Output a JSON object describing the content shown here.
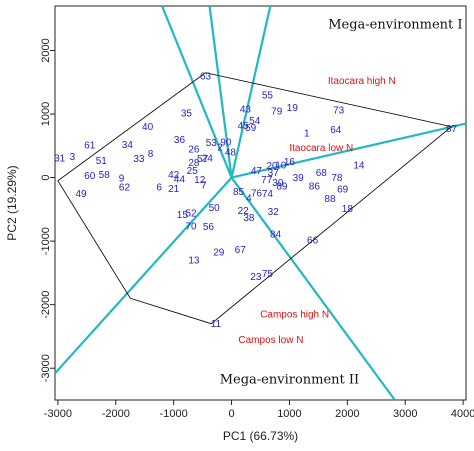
{
  "chart_data": {
    "type": "scatter",
    "title": "",
    "xlabel": "PC1 (66.73%)",
    "ylabel": "PC2 (19.29%)",
    "xlim": [
      -3050,
      4050
    ],
    "ylim": [
      -3500,
      2700
    ],
    "xticks": [
      -3000,
      -2000,
      -1000,
      0,
      1000,
      2000,
      3000,
      4000
    ],
    "yticks": [
      -3000,
      -2000,
      -1000,
      0,
      1000,
      2000
    ],
    "grid": false,
    "colors": {
      "genotype": "#1f1fc8",
      "environment": "#dd1111",
      "sector_line": "#22b8c0",
      "hull": "#111111"
    },
    "annotations": [
      {
        "text": "Mega-environment I",
        "x": 2830,
        "y": 2420
      },
      {
        "text": "Mega-environment II",
        "x": 1000,
        "y": -3170
      }
    ],
    "hull": [
      [
        -3000,
        -50
      ],
      [
        -1750,
        -1900
      ],
      [
        -350,
        -2300
      ],
      [
        3800,
        800
      ],
      [
        -450,
        1650
      ]
    ],
    "sector_lines": [
      {
        "end": [
          -3050,
          -3080
        ]
      },
      {
        "end": [
          -1200,
          2700
        ]
      },
      {
        "end": [
          -380,
          2700
        ]
      },
      {
        "end": [
          670,
          2700
        ]
      },
      {
        "end": [
          4050,
          850
        ]
      },
      {
        "end": [
          2820,
          -3500
        ]
      }
    ],
    "environments": [
      {
        "label": "Itaocara high N",
        "x": 2250,
        "y": 1530,
        "marker_x": 3800,
        "marker_y": 780
      },
      {
        "label": "Itaocara low N",
        "x": 1550,
        "y": 470,
        "marker_x": 1550,
        "marker_y": 470
      },
      {
        "label": "Campos high N",
        "x": 1090,
        "y": -2150,
        "marker_x": -280,
        "marker_y": -2300
      },
      {
        "label": "Campos low N",
        "x": 680,
        "y": -2550,
        "marker_x": -280,
        "marker_y": -2300
      }
    ],
    "genotypes": [
      {
        "label": "31",
        "x": -2970,
        "y": 310
      },
      {
        "label": "3",
        "x": -2750,
        "y": 330
      },
      {
        "label": "61",
        "x": -2450,
        "y": 510
      },
      {
        "label": "34",
        "x": -1800,
        "y": 520
      },
      {
        "label": "40",
        "x": -1450,
        "y": 800
      },
      {
        "label": "60",
        "x": -2450,
        "y": 30
      },
      {
        "label": "51",
        "x": -2250,
        "y": 270
      },
      {
        "label": "33",
        "x": -1600,
        "y": 300
      },
      {
        "label": "8",
        "x": -1400,
        "y": 380
      },
      {
        "label": "58",
        "x": -2200,
        "y": 50
      },
      {
        "label": "9",
        "x": -1900,
        "y": -10
      },
      {
        "label": "62",
        "x": -1850,
        "y": -150
      },
      {
        "label": "49",
        "x": -2600,
        "y": -250
      },
      {
        "label": "63",
        "x": -450,
        "y": 1600
      },
      {
        "label": "35",
        "x": -780,
        "y": 1020
      },
      {
        "label": "36",
        "x": -900,
        "y": 600
      },
      {
        "label": "26",
        "x": -650,
        "y": 450
      },
      {
        "label": "53",
        "x": -350,
        "y": 550
      },
      {
        "label": "90",
        "x": -100,
        "y": 560
      },
      {
        "label": "48",
        "x": -20,
        "y": 400
      },
      {
        "label": "2",
        "x": -200,
        "y": 480
      },
      {
        "label": "57",
        "x": -500,
        "y": 300
      },
      {
        "label": "24",
        "x": -420,
        "y": 310
      },
      {
        "label": "28",
        "x": -650,
        "y": 240
      },
      {
        "label": "25",
        "x": -680,
        "y": 110
      },
      {
        "label": "42",
        "x": -1000,
        "y": 50
      },
      {
        "label": "44",
        "x": -900,
        "y": -20
      },
      {
        "label": "12",
        "x": -550,
        "y": -30
      },
      {
        "label": "6",
        "x": -1250,
        "y": -150
      },
      {
        "label": "21",
        "x": -1000,
        "y": -170
      },
      {
        "label": "7",
        "x": -480,
        "y": -120
      },
      {
        "label": "43",
        "x": 240,
        "y": 1080
      },
      {
        "label": "55",
        "x": 620,
        "y": 1300
      },
      {
        "label": "79",
        "x": 780,
        "y": 1050
      },
      {
        "label": "19",
        "x": 1050,
        "y": 1100
      },
      {
        "label": "54",
        "x": 400,
        "y": 900
      },
      {
        "label": "45",
        "x": 200,
        "y": 820
      },
      {
        "label": "59",
        "x": 330,
        "y": 790
      },
      {
        "label": "1",
        "x": 1300,
        "y": 700
      },
      {
        "label": "73",
        "x": 1850,
        "y": 1060
      },
      {
        "label": "64",
        "x": 1800,
        "y": 760
      },
      {
        "label": "14",
        "x": 2200,
        "y": 200
      },
      {
        "label": "78",
        "x": 1820,
        "y": 0
      },
      {
        "label": "69",
        "x": 1920,
        "y": -180
      },
      {
        "label": "68",
        "x": 1550,
        "y": 80
      },
      {
        "label": "86",
        "x": 1430,
        "y": -130
      },
      {
        "label": "88",
        "x": 1700,
        "y": -330
      },
      {
        "label": "18",
        "x": 2000,
        "y": -490
      },
      {
        "label": "87",
        "x": 3800,
        "y": 770
      },
      {
        "label": "16",
        "x": 1000,
        "y": 250
      },
      {
        "label": "20",
        "x": 700,
        "y": 190
      },
      {
        "label": "10",
        "x": 850,
        "y": 200
      },
      {
        "label": "39",
        "x": 1150,
        "y": 0
      },
      {
        "label": "47",
        "x": 430,
        "y": 110
      },
      {
        "label": "37",
        "x": 720,
        "y": 80
      },
      {
        "label": "77",
        "x": 610,
        "y": -30
      },
      {
        "label": "30",
        "x": 800,
        "y": -80
      },
      {
        "label": "89",
        "x": 870,
        "y": -130
      },
      {
        "label": "85",
        "x": 120,
        "y": -220
      },
      {
        "label": "76",
        "x": 430,
        "y": -240
      },
      {
        "label": "4",
        "x": 300,
        "y": -320
      },
      {
        "label": "74",
        "x": 620,
        "y": -250
      },
      {
        "label": "50",
        "x": -300,
        "y": -470
      },
      {
        "label": "15",
        "x": -850,
        "y": -580
      },
      {
        "label": "52",
        "x": -700,
        "y": -560
      },
      {
        "label": "70",
        "x": -700,
        "y": -760
      },
      {
        "label": "56",
        "x": -400,
        "y": -770
      },
      {
        "label": "38",
        "x": 300,
        "y": -630
      },
      {
        "label": "32",
        "x": 720,
        "y": -530
      },
      {
        "label": "22",
        "x": 200,
        "y": -520
      },
      {
        "label": "84",
        "x": 760,
        "y": -890
      },
      {
        "label": "66",
        "x": 1400,
        "y": -980
      },
      {
        "label": "13",
        "x": -650,
        "y": -1300
      },
      {
        "label": "29",
        "x": -220,
        "y": -1170
      },
      {
        "label": "67",
        "x": 150,
        "y": -1130
      },
      {
        "label": "23",
        "x": 420,
        "y": -1560
      },
      {
        "label": "75",
        "x": 620,
        "y": -1510
      },
      {
        "label": "11",
        "x": -270,
        "y": -2300
      }
    ]
  }
}
